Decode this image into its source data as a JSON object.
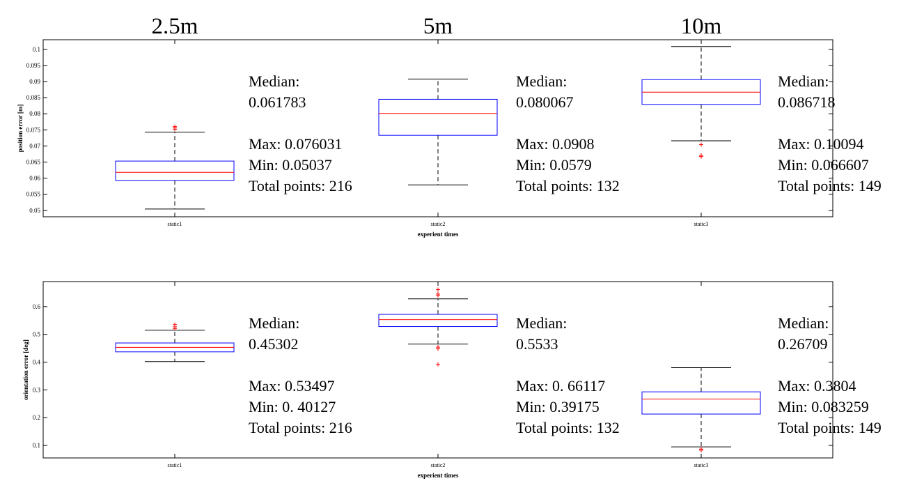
{
  "column_headers": [
    "2.5m",
    "5m",
    "10m"
  ],
  "colors": {
    "box": "#0000ff",
    "median": "#ff0000",
    "outlier": "#ff0000",
    "whisker": "#000000",
    "axis": "#000000"
  },
  "chart_data": [
    {
      "type": "box",
      "xlabel": "experient times",
      "ylabel": "position error [m]",
      "ylim": [
        0.048,
        0.103
      ],
      "yticks": [
        0.05,
        0.055,
        0.06,
        0.065,
        0.07,
        0.075,
        0.08,
        0.085,
        0.09,
        0.095,
        0.1
      ],
      "ytick_labels": [
        "0.05",
        "0.055",
        "0.06",
        "0.065",
        "0.07",
        "0.075",
        "0.08",
        "0.085",
        "0.09",
        "0.095",
        "0.1"
      ],
      "categories": [
        "static1",
        "static2",
        "static3"
      ],
      "boxes": [
        {
          "category": "static1",
          "q1": 0.0593,
          "median": 0.0618,
          "q3": 0.0653,
          "whisker_low": 0.0504,
          "whisker_high": 0.0743,
          "outliers": [
            0.0752,
            0.0756,
            0.076
          ]
        },
        {
          "category": "static2",
          "q1": 0.0733,
          "median": 0.0801,
          "q3": 0.0845,
          "whisker_low": 0.0579,
          "whisker_high": 0.0908,
          "outliers": []
        },
        {
          "category": "static3",
          "q1": 0.0829,
          "median": 0.0867,
          "q3": 0.0906,
          "whisker_low": 0.0716,
          "whisker_high": 0.1009,
          "outliers": [
            0.0704,
            0.0671,
            0.0667
          ]
        }
      ],
      "annotations": [
        {
          "median_label": "Median:",
          "median_value": "0.061783",
          "max": "Max: 0.076031",
          "min": "Min: 0.05037",
          "total": "Total points: 216"
        },
        {
          "median_label": "Median:",
          "median_value": "0.080067",
          "max": "Max: 0.0908",
          "min": "Min: 0.0579",
          "total": "Total points: 132"
        },
        {
          "median_label": "Median:",
          "median_value": "0.086718",
          "max": "Max: 0.10094",
          "min": "Min: 0.066607",
          "total": "Total points: 149"
        }
      ]
    },
    {
      "type": "box",
      "xlabel": "experient times",
      "ylabel": "orientation error [deg]",
      "ylim": [
        0.055,
        0.69
      ],
      "yticks": [
        0.1,
        0.2,
        0.3,
        0.4,
        0.5,
        0.6
      ],
      "ytick_labels": [
        "0.1",
        "0.2",
        "0.3",
        "0.4",
        "0.5",
        "0.6"
      ],
      "categories": [
        "static1",
        "static2",
        "static3"
      ],
      "boxes": [
        {
          "category": "static1",
          "q1": 0.437,
          "median": 0.453,
          "q3": 0.469,
          "whisker_low": 0.402,
          "whisker_high": 0.515,
          "outliers": [
            0.521,
            0.527,
            0.535
          ]
        },
        {
          "category": "static2",
          "q1": 0.528,
          "median": 0.553,
          "q3": 0.572,
          "whisker_low": 0.465,
          "whisker_high": 0.628,
          "outliers": [
            0.392,
            0.448,
            0.454,
            0.64,
            0.645,
            0.661
          ]
        },
        {
          "category": "static3",
          "q1": 0.213,
          "median": 0.267,
          "q3": 0.293,
          "whisker_low": 0.095,
          "whisker_high": 0.38,
          "outliers": [
            0.083,
            0.087
          ]
        }
      ],
      "annotations": [
        {
          "median_label": "Median:",
          "median_value": "0.45302",
          "max": "Max: 0.53497",
          "min": "Min: 0. 40127",
          "total": "Total points: 216"
        },
        {
          "median_label": "Median:",
          "median_value": "0.5533",
          "max": "Max: 0. 66117",
          "min": "Min: 0.39175",
          "total": "Total points: 132"
        },
        {
          "median_label": "Median:",
          "median_value": "0.26709",
          "max": "Max: 0.3804",
          "min": "Min: 0.083259",
          "total": "Total points: 149"
        }
      ]
    }
  ]
}
